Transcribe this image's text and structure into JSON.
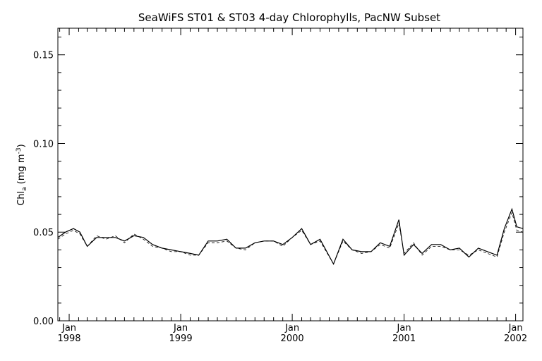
{
  "chart_data": {
    "type": "line",
    "title": "SeaWiFS ST01 & ST03 4-day Chlorophylls, PacNW Subset",
    "ylabel": "Chl",
    "ylabel_sub": "a",
    "ylabel_units": "(mg m",
    "ylabel_sup": "-3",
    "ylabel_close": ")",
    "ylim": [
      0.0,
      0.165
    ],
    "xlim": [
      "1997-11-25",
      "2002-01-25"
    ],
    "yticks": [
      {
        "value": 0.0,
        "label": "0.00"
      },
      {
        "value": 0.05,
        "label": "0.05"
      },
      {
        "value": 0.1,
        "label": "0.10"
      },
      {
        "value": 0.15,
        "label": "0.15"
      }
    ],
    "xticks": [
      {
        "date": "1998-01-01",
        "month": "Jan",
        "year": "1998"
      },
      {
        "date": "1999-01-01",
        "month": "Jan",
        "year": "1999"
      },
      {
        "date": "2000-01-01",
        "month": "Jan",
        "year": "2000"
      },
      {
        "date": "2001-01-01",
        "month": "Jan",
        "year": "2001"
      },
      {
        "date": "2002-01-01",
        "month": "Jan",
        "year": "2002"
      }
    ],
    "grid": false,
    "series": [
      {
        "style": "solid",
        "points": [
          [
            "1997-11-25",
            0.047
          ],
          [
            "1997-12-20",
            0.05
          ],
          [
            "1998-01-15",
            0.052
          ],
          [
            "1998-02-05",
            0.05
          ],
          [
            "1998-03-01",
            0.042
          ],
          [
            "1998-04-01",
            0.047
          ],
          [
            "1998-05-01",
            0.047
          ],
          [
            "1998-06-01",
            0.047
          ],
          [
            "1998-07-01",
            0.045
          ],
          [
            "1998-08-01",
            0.048
          ],
          [
            "1998-09-01",
            0.047
          ],
          [
            "1998-10-01",
            0.043
          ],
          [
            "1998-11-01",
            0.041
          ],
          [
            "1998-12-01",
            0.04
          ],
          [
            "1999-01-01",
            0.039
          ],
          [
            "1999-02-01",
            0.038
          ],
          [
            "1999-03-01",
            0.037
          ],
          [
            "1999-04-01",
            0.045
          ],
          [
            "1999-05-01",
            0.045
          ],
          [
            "1999-06-01",
            0.046
          ],
          [
            "1999-07-01",
            0.041
          ],
          [
            "1999-08-01",
            0.041
          ],
          [
            "1999-09-01",
            0.044
          ],
          [
            "1999-10-01",
            0.045
          ],
          [
            "1999-11-01",
            0.045
          ],
          [
            "1999-12-01",
            0.043
          ],
          [
            "2000-01-01",
            0.047
          ],
          [
            "2000-02-01",
            0.052
          ],
          [
            "2000-03-01",
            0.043
          ],
          [
            "2000-04-01",
            0.046
          ],
          [
            "2000-05-15",
            0.032
          ],
          [
            "2000-06-15",
            0.046
          ],
          [
            "2000-07-15",
            0.04
          ],
          [
            "2000-08-15",
            0.039
          ],
          [
            "2000-09-15",
            0.039
          ],
          [
            "2000-10-15",
            0.044
          ],
          [
            "2000-11-15",
            0.042
          ],
          [
            "2000-12-15",
            0.057
          ],
          [
            "2001-01-01",
            0.037
          ],
          [
            "2001-02-01",
            0.043
          ],
          [
            "2001-03-01",
            0.038
          ],
          [
            "2001-04-01",
            0.043
          ],
          [
            "2001-05-01",
            0.043
          ],
          [
            "2001-06-01",
            0.04
          ],
          [
            "2001-07-01",
            0.041
          ],
          [
            "2001-08-01",
            0.036
          ],
          [
            "2001-09-01",
            0.041
          ],
          [
            "2001-10-01",
            0.039
          ],
          [
            "2001-11-01",
            0.037
          ],
          [
            "2001-11-25",
            0.052
          ],
          [
            "2001-12-20",
            0.063
          ],
          [
            "2002-01-05",
            0.053
          ],
          [
            "2002-01-25",
            0.052
          ]
        ]
      },
      {
        "style": "dashed",
        "points": [
          [
            "1997-11-25",
            0.046
          ],
          [
            "1997-12-20",
            0.049
          ],
          [
            "1998-01-15",
            0.051
          ],
          [
            "1998-02-05",
            0.049
          ],
          [
            "1998-03-01",
            0.042
          ],
          [
            "1998-04-01",
            0.048
          ],
          [
            "1998-05-01",
            0.046
          ],
          [
            "1998-06-01",
            0.048
          ],
          [
            "1998-07-01",
            0.044
          ],
          [
            "1998-08-01",
            0.049
          ],
          [
            "1998-09-01",
            0.046
          ],
          [
            "1998-10-01",
            0.042
          ],
          [
            "1998-11-01",
            0.041
          ],
          [
            "1998-12-01",
            0.039
          ],
          [
            "1999-01-01",
            0.039
          ],
          [
            "1999-02-01",
            0.037
          ],
          [
            "1999-03-01",
            0.037
          ],
          [
            "1999-04-01",
            0.044
          ],
          [
            "1999-05-01",
            0.044
          ],
          [
            "1999-06-01",
            0.045
          ],
          [
            "1999-07-01",
            0.041
          ],
          [
            "1999-08-01",
            0.04
          ],
          [
            "1999-09-01",
            0.044
          ],
          [
            "1999-10-01",
            0.045
          ],
          [
            "1999-11-01",
            0.045
          ],
          [
            "1999-12-01",
            0.042
          ],
          [
            "2000-01-01",
            0.047
          ],
          [
            "2000-02-01",
            0.051
          ],
          [
            "2000-03-01",
            0.043
          ],
          [
            "2000-04-01",
            0.045
          ],
          [
            "2000-05-15",
            0.032
          ],
          [
            "2000-06-15",
            0.045
          ],
          [
            "2000-07-15",
            0.04
          ],
          [
            "2000-08-15",
            0.038
          ],
          [
            "2000-09-15",
            0.039
          ],
          [
            "2000-10-15",
            0.043
          ],
          [
            "2000-11-15",
            0.041
          ],
          [
            "2000-12-15",
            0.055
          ],
          [
            "2001-01-01",
            0.038
          ],
          [
            "2001-02-01",
            0.044
          ],
          [
            "2001-03-01",
            0.037
          ],
          [
            "2001-04-01",
            0.042
          ],
          [
            "2001-05-01",
            0.042
          ],
          [
            "2001-06-01",
            0.04
          ],
          [
            "2001-07-01",
            0.04
          ],
          [
            "2001-08-01",
            0.037
          ],
          [
            "2001-09-01",
            0.04
          ],
          [
            "2001-10-01",
            0.038
          ],
          [
            "2001-11-01",
            0.036
          ],
          [
            "2001-11-25",
            0.05
          ],
          [
            "2001-12-20",
            0.061
          ],
          [
            "2002-01-05",
            0.051
          ],
          [
            "2002-01-25",
            0.05
          ]
        ]
      }
    ]
  }
}
